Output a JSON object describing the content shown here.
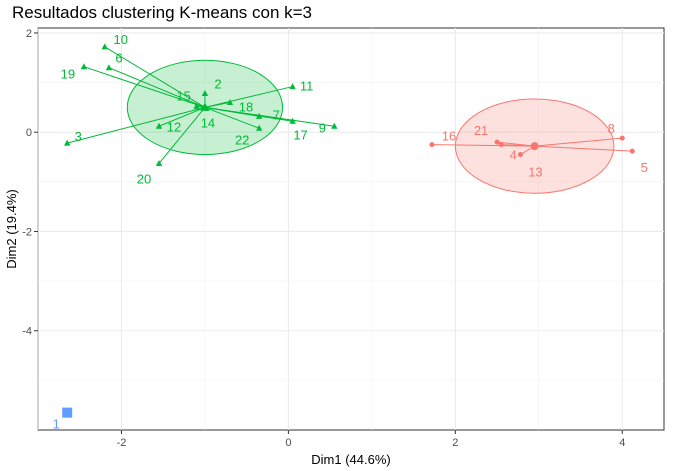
{
  "chart_data": {
    "type": "scatter",
    "title": "Resultados clustering K-means con k=3",
    "xlabel": "Dim1 (44.6%)",
    "ylabel": "Dim2 (19.4%)",
    "xlim": [
      -3.0,
      4.5
    ],
    "ylim": [
      -6.0,
      2.1
    ],
    "xticks": [
      -2,
      0,
      2,
      4
    ],
    "yticks": [
      2,
      0,
      -2,
      -4
    ],
    "xtick_labels": [
      "-2",
      "0",
      "2",
      "4"
    ],
    "ytick_labels": [
      "2",
      "0",
      "-2",
      "-4"
    ],
    "grid": true,
    "legend": "none",
    "clusters": [
      {
        "id": "cluster-green",
        "color": "#00ba38",
        "marker": "triangle",
        "centroid": [
          -1.0,
          0.5
        ],
        "ellipse": {
          "cx": -1.0,
          "cy": 0.5,
          "rx": 0.93,
          "ry": 0.95
        },
        "points": [
          {
            "label": "10",
            "x": -2.2,
            "y": 1.72
          },
          {
            "label": "6",
            "x": -2.15,
            "y": 1.3
          },
          {
            "label": "19",
            "x": -2.45,
            "y": 1.32
          },
          {
            "label": "15",
            "x": -1.1,
            "y": 0.52
          },
          {
            "label": "2",
            "x": -1.0,
            "y": 0.78
          },
          {
            "label": "11",
            "x": 0.05,
            "y": 0.92
          },
          {
            "label": "18",
            "x": -0.7,
            "y": 0.6
          },
          {
            "label": "12",
            "x": -1.55,
            "y": 0.12
          },
          {
            "label": "14",
            "x": -1.0,
            "y": 0.5
          },
          {
            "label": "7",
            "x": -0.35,
            "y": 0.32
          },
          {
            "label": "3",
            "x": -2.65,
            "y": -0.22
          },
          {
            "label": "22",
            "x": -0.35,
            "y": 0.08
          },
          {
            "label": "17",
            "x": 0.05,
            "y": 0.22
          },
          {
            "label": "9",
            "x": 0.55,
            "y": 0.12
          },
          {
            "label": "20",
            "x": -1.55,
            "y": -0.63
          }
        ]
      },
      {
        "id": "cluster-red",
        "color": "#f8766d",
        "marker": "circle",
        "centroid": [
          2.95,
          -0.28
        ],
        "ellipse": {
          "cx": 2.95,
          "cy": -0.28,
          "rx": 0.95,
          "ry": 0.95
        },
        "points": [
          {
            "label": "16",
            "x": 1.72,
            "y": -0.25
          },
          {
            "label": "21",
            "x": 2.5,
            "y": -0.2
          },
          {
            "label": "4",
            "x": 2.55,
            "y": -0.25
          },
          {
            "label": "13",
            "x": 2.78,
            "y": -0.45
          },
          {
            "label": "8",
            "x": 4.0,
            "y": -0.12
          },
          {
            "label": "5",
            "x": 4.12,
            "y": -0.38
          }
        ]
      },
      {
        "id": "cluster-blue",
        "color": "#619cff",
        "marker": "square",
        "centroid": [
          -2.65,
          -5.65
        ],
        "ellipse": null,
        "points": [
          {
            "label": "1",
            "x": -2.65,
            "y": -5.65
          }
        ]
      }
    ]
  }
}
